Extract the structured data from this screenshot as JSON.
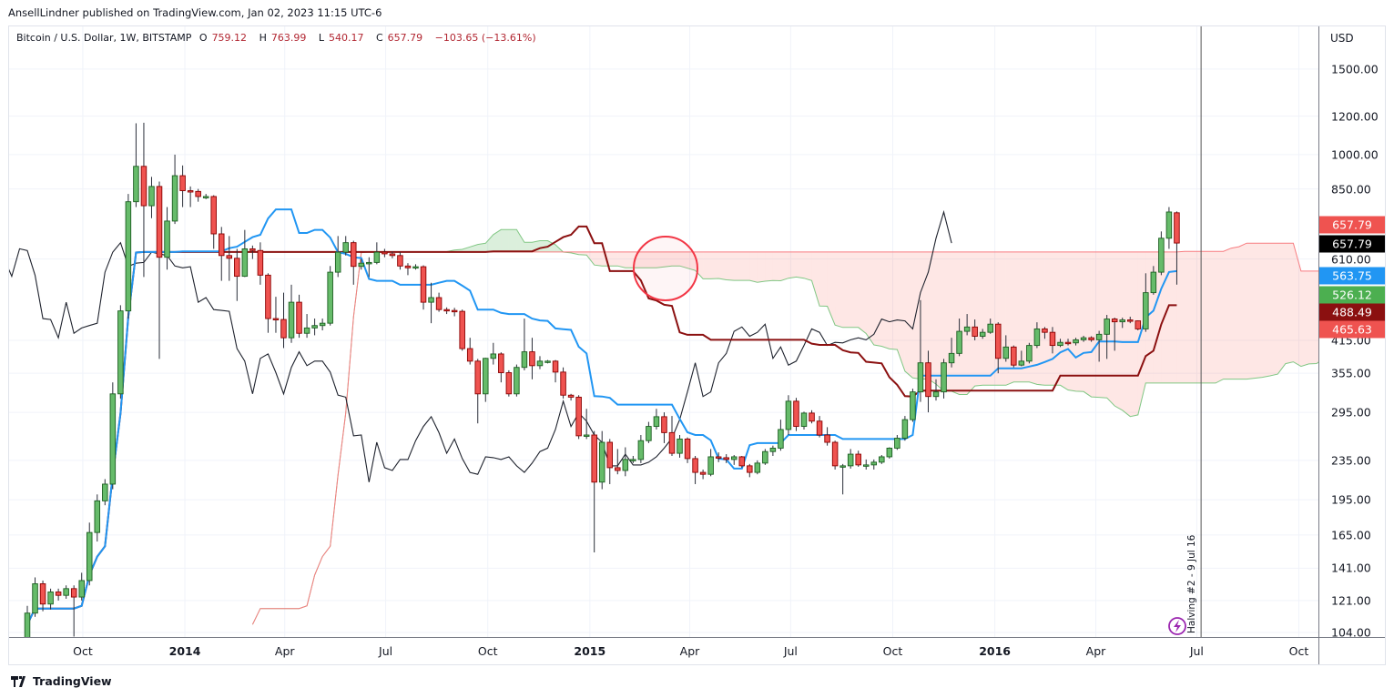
{
  "header": {
    "published": "AnsellLindner published on TradingView.com, Jan 02, 2023 11:15 UTC-6"
  },
  "legend": {
    "symbol": "Bitcoin / U.S. Dollar, 1W, BITSTAMP",
    "open_prefix": "O",
    "open": "759.12",
    "high_prefix": "H",
    "high": "763.99",
    "low_prefix": "L",
    "low": "540.17",
    "close_prefix": "C",
    "close": "657.79",
    "change": "−103.65 (−13.61%)"
  },
  "price_axis": {
    "currency": "USD",
    "ticks": [
      "1500.00",
      "1200.00",
      "1000.00",
      "850.00",
      "610.00",
      "415.00",
      "355.00",
      "295.00",
      "235.00",
      "195.00",
      "165.00",
      "141.00",
      "121.00",
      "104.00"
    ],
    "labels": [
      {
        "text": "657.79",
        "color": "#ef5350",
        "meaning": "last price"
      },
      {
        "text": "657.79",
        "color": "#000000",
        "meaning": "lagging span"
      },
      {
        "text": "563.75",
        "color": "#2196f3",
        "meaning": "conversion line"
      },
      {
        "text": "526.12",
        "color": "#4caf50",
        "meaning": "leading span A"
      },
      {
        "text": "488.49",
        "color": "#8b1010",
        "meaning": "base line"
      },
      {
        "text": "465.63",
        "color": "#ef5350",
        "meaning": "leading span B"
      }
    ]
  },
  "time_axis": {
    "ticks": [
      {
        "label": "Oct",
        "date": "2013-10-01",
        "year": false
      },
      {
        "label": "2014",
        "date": "2014-01-01",
        "year": true
      },
      {
        "label": "Apr",
        "date": "2014-04-01",
        "year": false
      },
      {
        "label": "Jul",
        "date": "2014-07-01",
        "year": false
      },
      {
        "label": "Oct",
        "date": "2014-10-01",
        "year": false
      },
      {
        "label": "2015",
        "date": "2015-01-01",
        "year": true
      },
      {
        "label": "Apr",
        "date": "2015-04-01",
        "year": false
      },
      {
        "label": "Jul",
        "date": "2015-07-01",
        "year": false
      },
      {
        "label": "Oct",
        "date": "2015-10-01",
        "year": false
      },
      {
        "label": "2016",
        "date": "2016-01-01",
        "year": true
      },
      {
        "label": "Apr",
        "date": "2016-04-01",
        "year": false
      },
      {
        "label": "Jul",
        "date": "2016-07-01",
        "year": false
      },
      {
        "label": "Oct",
        "date": "2016-10-01",
        "year": false
      }
    ]
  },
  "event": {
    "label": "Halving #2 - 9 Jul 16",
    "date": "2016-07-09",
    "icon": "lightning-icon",
    "color": "#9c27b0"
  },
  "footer": {
    "brand": "TradingView"
  },
  "colors": {
    "up": "#66bb6a",
    "up_border": "#1b5e20",
    "down": "#ef5350",
    "down_border": "#8b0000",
    "conversion": "#2196f3",
    "base": "#8b1010",
    "lagging": "#1e222d",
    "span_a": "#81c784",
    "span_b": "#f77c80",
    "cloud_up": "rgba(76,175,80,0.2)",
    "cloud_down": "rgba(244,67,54,0.13)",
    "annotation": "#f23645"
  },
  "chart_data": {
    "type": "candlestick",
    "interval": "1W",
    "scale": "log",
    "ylim": [
      104,
      1600
    ],
    "grid": true,
    "indicator": "Ichimoku Cloud",
    "first_bar": "2013-08-12",
    "ohlc": [
      [
        100,
        118,
        98,
        114
      ],
      [
        114,
        135,
        112,
        131
      ],
      [
        131,
        133,
        115,
        119
      ],
      [
        119,
        128,
        116,
        126
      ],
      [
        126,
        128,
        121,
        124
      ],
      [
        124,
        130,
        122,
        128
      ],
      [
        128,
        130,
        102,
        123
      ],
      [
        123,
        138,
        121,
        133
      ],
      [
        133,
        175,
        130,
        167
      ],
      [
        167,
        200,
        160,
        194
      ],
      [
        194,
        215,
        190,
        210
      ],
      [
        210,
        340,
        205,
        322
      ],
      [
        322,
        490,
        315,
        477
      ],
      [
        477,
        830,
        460,
        800
      ],
      [
        800,
        1160,
        780,
        946
      ],
      [
        946,
        1163,
        560,
        785
      ],
      [
        785,
        900,
        740,
        860
      ],
      [
        860,
        880,
        380,
        615
      ],
      [
        615,
        780,
        580,
        730
      ],
      [
        730,
        1000,
        720,
        905
      ],
      [
        905,
        950,
        780,
        843
      ],
      [
        843,
        860,
        780,
        840
      ],
      [
        840,
        850,
        800,
        820
      ],
      [
        820,
        830,
        810,
        820
      ],
      [
        820,
        825,
        640,
        687
      ],
      [
        687,
        710,
        550,
        620
      ],
      [
        620,
        680,
        550,
        612
      ],
      [
        612,
        640,
        500,
        562
      ],
      [
        562,
        700,
        560,
        640
      ],
      [
        640,
        650,
        610,
        635
      ],
      [
        635,
        660,
        540,
        565
      ],
      [
        565,
        570,
        430,
        460
      ],
      [
        460,
        510,
        430,
        458
      ],
      [
        458,
        520,
        400,
        420
      ],
      [
        420,
        540,
        410,
        497
      ],
      [
        497,
        515,
        420,
        429
      ],
      [
        429,
        470,
        420,
        440
      ],
      [
        440,
        460,
        425,
        445
      ],
      [
        445,
        460,
        435,
        450
      ],
      [
        450,
        590,
        445,
        573
      ],
      [
        573,
        680,
        560,
        630
      ],
      [
        630,
        680,
        620,
        659
      ],
      [
        659,
        665,
        540,
        589
      ],
      [
        589,
        610,
        580,
        598
      ],
      [
        598,
        615,
        560,
        600
      ],
      [
        600,
        660,
        595,
        630
      ],
      [
        630,
        640,
        615,
        625
      ],
      [
        625,
        632,
        612,
        620
      ],
      [
        620,
        630,
        580,
        590
      ],
      [
        590,
        598,
        565,
        585
      ],
      [
        585,
        595,
        580,
        588
      ],
      [
        588,
        592,
        480,
        497
      ],
      [
        497,
        545,
        450,
        508
      ],
      [
        508,
        520,
        475,
        480
      ],
      [
        480,
        485,
        470,
        478
      ],
      [
        478,
        484,
        465,
        476
      ],
      [
        476,
        480,
        395,
        399
      ],
      [
        399,
        420,
        370,
        376
      ],
      [
        376,
        380,
        280,
        322
      ],
      [
        322,
        382,
        310,
        381
      ],
      [
        381,
        410,
        370,
        389
      ],
      [
        389,
        392,
        340,
        356
      ],
      [
        356,
        360,
        318,
        322
      ],
      [
        322,
        370,
        318,
        365
      ],
      [
        365,
        460,
        360,
        393
      ],
      [
        393,
        420,
        345,
        368
      ],
      [
        368,
        385,
        362,
        376
      ],
      [
        376,
        378,
        372,
        376
      ],
      [
        376,
        378,
        340,
        357
      ],
      [
        357,
        365,
        315,
        320
      ],
      [
        320,
        322,
        312,
        317
      ],
      [
        317,
        320,
        260,
        264
      ],
      [
        264,
        300,
        260,
        265
      ],
      [
        265,
        270,
        152,
        212
      ],
      [
        212,
        270,
        205,
        256
      ],
      [
        256,
        260,
        210,
        227
      ],
      [
        227,
        248,
        220,
        224
      ],
      [
        224,
        250,
        218,
        236
      ],
      [
        236,
        240,
        232,
        236
      ],
      [
        236,
        265,
        232,
        258
      ],
      [
        258,
        282,
        255,
        276
      ],
      [
        276,
        300,
        272,
        289
      ],
      [
        289,
        295,
        255,
        268
      ],
      [
        268,
        290,
        240,
        243
      ],
      [
        243,
        265,
        238,
        260
      ],
      [
        260,
        262,
        232,
        237
      ],
      [
        237,
        240,
        210,
        222
      ],
      [
        222,
        225,
        215,
        220
      ],
      [
        220,
        248,
        218,
        239
      ],
      [
        239,
        244,
        233,
        238
      ],
      [
        238,
        242,
        232,
        236
      ],
      [
        236,
        241,
        230,
        239
      ],
      [
        239,
        240,
        227,
        229
      ],
      [
        229,
        231,
        217,
        222
      ],
      [
        222,
        235,
        220,
        232
      ],
      [
        232,
        248,
        230,
        245
      ],
      [
        245,
        252,
        240,
        249
      ],
      [
        249,
        285,
        246,
        272
      ],
      [
        272,
        320,
        265,
        311
      ],
      [
        311,
        316,
        270,
        276
      ],
      [
        276,
        296,
        272,
        294
      ],
      [
        294,
        298,
        280,
        283
      ],
      [
        283,
        290,
        262,
        265
      ],
      [
        265,
        275,
        252,
        256
      ],
      [
        256,
        258,
        225,
        229
      ],
      [
        229,
        231,
        200,
        229
      ],
      [
        229,
        248,
        226,
        242
      ],
      [
        242,
        246,
        228,
        230
      ],
      [
        230,
        236,
        225,
        230
      ],
      [
        230,
        236,
        225,
        233
      ],
      [
        233,
        241,
        231,
        239
      ],
      [
        239,
        250,
        237,
        249
      ],
      [
        249,
        265,
        247,
        261
      ],
      [
        261,
        290,
        258,
        285
      ],
      [
        285,
        330,
        282,
        325
      ],
      [
        325,
        502,
        310,
        373
      ],
      [
        373,
        395,
        295,
        318
      ],
      [
        318,
        345,
        312,
        325
      ],
      [
        325,
        380,
        315,
        373
      ],
      [
        373,
        420,
        365,
        390
      ],
      [
        390,
        460,
        385,
        433
      ],
      [
        433,
        470,
        425,
        442
      ],
      [
        442,
        458,
        415,
        423
      ],
      [
        423,
        438,
        418,
        431
      ],
      [
        431,
        460,
        428,
        448
      ],
      [
        448,
        452,
        355,
        381
      ],
      [
        381,
        425,
        375,
        402
      ],
      [
        402,
        405,
        365,
        369
      ],
      [
        369,
        395,
        367,
        376
      ],
      [
        376,
        410,
        372,
        405
      ],
      [
        405,
        452,
        400,
        438
      ],
      [
        438,
        442,
        418,
        431
      ],
      [
        431,
        442,
        390,
        405
      ],
      [
        405,
        418,
        402,
        411
      ],
      [
        411,
        418,
        405,
        410
      ],
      [
        410,
        420,
        405,
        416
      ],
      [
        416,
        424,
        412,
        420
      ],
      [
        420,
        423,
        412,
        416
      ],
      [
        416,
        434,
        375,
        427
      ],
      [
        427,
        468,
        380,
        459
      ],
      [
        459,
        462,
        395,
        453
      ],
      [
        453,
        462,
        440,
        457
      ],
      [
        457,
        464,
        450,
        455
      ],
      [
        455,
        456,
        435,
        438
      ],
      [
        438,
        570,
        432,
        520
      ],
      [
        520,
        590,
        515,
        573
      ],
      [
        573,
        695,
        565,
        673
      ],
      [
        673,
        780,
        640,
        762
      ],
      [
        759.12,
        763.99,
        540.17,
        657.79
      ]
    ]
  }
}
